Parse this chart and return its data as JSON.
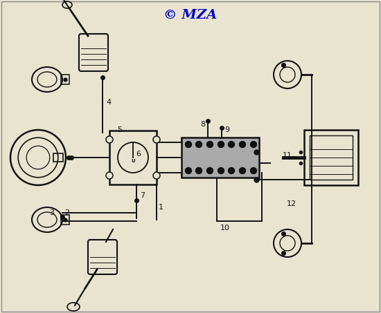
{
  "title": "© MZA",
  "title_color": "#0000CC",
  "title_fontsize": 14,
  "bg_color": "#e8e4d0",
  "line_color": "#111111",
  "border_color": "#888888",
  "figsize": [
    5.5,
    4.53
  ],
  "dpi": 100,
  "xlim": [
    0,
    550
  ],
  "ylim": [
    0,
    453
  ]
}
